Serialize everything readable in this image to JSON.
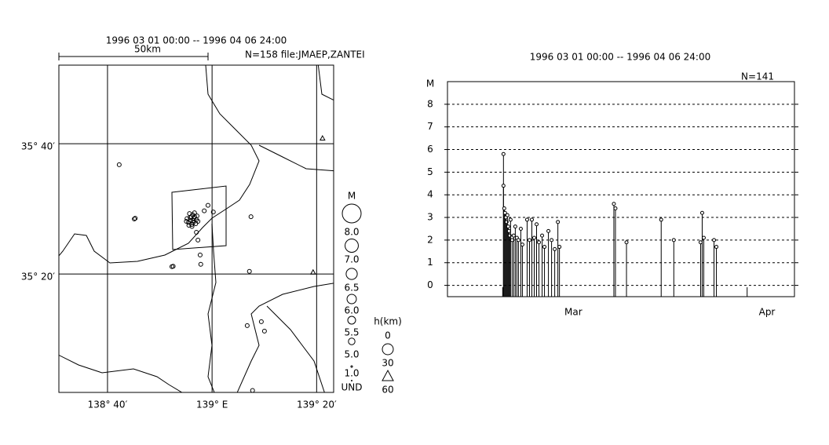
{
  "chart_data": [
    {
      "type": "map",
      "title": "1996 03 01 00:00 -- 1996 04 06 24:00",
      "scale_label": "50km",
      "note": "N=158 file:JMAEP,ZANTEI",
      "xlim": [
        138.5117,
        139.3875
      ],
      "ylim": [
        35.03,
        35.868
      ],
      "xticks": [
        {
          "value": 138.6667,
          "label": "138° 40′"
        },
        {
          "value": 139,
          "label": "139° E"
        },
        {
          "value": 139.3333,
          "label": "139° 20′"
        }
      ],
      "yticks": [
        {
          "value": 35.6667,
          "label": "35° 40′"
        },
        {
          "value": 35.3333,
          "label": "35° 20′"
        }
      ],
      "grid": true,
      "color": "#000000",
      "series": [
        {
          "marker": "circle",
          "x": [
            138.93,
            138.94,
            138.925,
            138.945,
            138.935,
            138.95,
            138.92,
            138.938,
            138.928,
            138.948,
            138.932,
            138.942,
            138.955,
            138.918,
            138.936,
            138.944,
            138.952,
            138.926,
            138.94,
            138.934,
            138.704,
            138.752,
            138.755,
            138.872,
            138.876,
            138.962,
            138.964,
            138.95,
            138.955,
            139.124,
            139.119,
            139.112,
            139.157,
            139.167,
            139.129,
            139.004,
            138.987,
            138.975
          ],
          "y": [
            35.478,
            35.47,
            35.465,
            35.48,
            35.46,
            35.472,
            35.475,
            35.485,
            35.488,
            35.462,
            35.47,
            35.476,
            35.468,
            35.468,
            35.455,
            35.49,
            35.482,
            35.458,
            35.465,
            35.48,
            35.613,
            35.474,
            35.476,
            35.352,
            35.353,
            35.382,
            35.358,
            35.44,
            35.42,
            35.48,
            35.34,
            35.201,
            35.211,
            35.187,
            35.035,
            35.492,
            35.509,
            35.495
          ]
        },
        {
          "marker": "triangle",
          "x": [
            139.352,
            139.322
          ],
          "y": [
            35.681,
            35.338
          ]
        }
      ],
      "size_legend": {
        "title": "M",
        "values": [
          {
            "value": 8,
            "label": "8.0"
          },
          {
            "value": 7,
            "label": "7.0"
          },
          {
            "value": 6.5,
            "label": "6.5"
          },
          {
            "value": 6,
            "label": "6.0"
          },
          {
            "value": 5.5,
            "label": "5.5"
          },
          {
            "value": 5,
            "label": "5.0"
          },
          {
            "value": 1,
            "label": "1.0"
          }
        ],
        "undetermined": "UND"
      },
      "depth_legend": {
        "title": "h(km)",
        "labels": [
          "0",
          "30",
          "60"
        ]
      }
    },
    {
      "type": "stem",
      "title": "1996 03 01 00:00 -- 1996 04 06 24:00",
      "ylabel": "M",
      "note": "N=141",
      "x": [
        0.1,
        0.1,
        0.2,
        0.3,
        0.4,
        0.5,
        0.6,
        0.7,
        0.8,
        0.9,
        1.0,
        1.2,
        1.4,
        1.6,
        1.8,
        2.0,
        2.3,
        2.5,
        3.1,
        3.4,
        3.7,
        4.0,
        4.3,
        4.6,
        5.0,
        5.3,
        5.8,
        6.2,
        6.6,
        7.0,
        7.2,
        14.1,
        14.3,
        15.7,
        20.1,
        21.7,
        25.1,
        25.3,
        25.5,
        26.8,
        27.1
      ],
      "values": [
        5.8,
        4.4,
        3.4,
        3.2,
        3.0,
        2.8,
        3.1,
        2.6,
        2.4,
        2.2,
        2.9,
        2.0,
        2.2,
        2.6,
        2.1,
        2.0,
        2.5,
        1.8,
        2.9,
        2.0,
        2.9,
        2.1,
        2.7,
        1.9,
        2.2,
        1.7,
        2.4,
        2.0,
        1.6,
        2.8,
        1.7,
        3.6,
        3.4,
        1.9,
        2.9,
        2.0,
        1.9,
        3.2,
        2.1,
        2.0,
        1.7
      ],
      "xlim": [
        -7,
        37
      ],
      "xticks": [
        {
          "value": 0,
          "label": "Mar"
        },
        {
          "value": 31,
          "label": "Apr"
        }
      ],
      "ylim": [
        -0.5,
        9
      ],
      "yticks": [
        0,
        1,
        2,
        3,
        4,
        5,
        6,
        7,
        8
      ],
      "grid": true,
      "color": "#000000"
    }
  ]
}
